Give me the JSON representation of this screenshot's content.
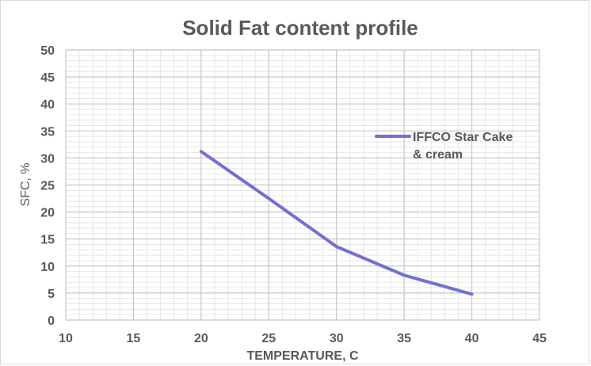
{
  "chart_data": {
    "type": "line",
    "title": "Solid Fat content profile",
    "xlabel": "TEMPERATURE, C",
    "ylabel": "SFC, %",
    "xlim": [
      10,
      45
    ],
    "ylim": [
      0,
      50
    ],
    "x_ticks": [
      10,
      15,
      20,
      25,
      30,
      35,
      40,
      45
    ],
    "y_ticks": [
      0,
      5,
      10,
      15,
      20,
      25,
      30,
      35,
      40,
      45,
      50
    ],
    "grid": true,
    "legend_position": "right",
    "series": [
      {
        "name_lines": [
          "IFFCO Star Cake",
          "& cream"
        ],
        "color": "#7171d1",
        "points": [
          {
            "x": 20,
            "y": 31.2
          },
          {
            "x": 25,
            "y": 22.5
          },
          {
            "x": 30,
            "y": 13.6
          },
          {
            "x": 35,
            "y": 8.3
          },
          {
            "x": 40,
            "y": 4.8
          }
        ]
      }
    ]
  }
}
